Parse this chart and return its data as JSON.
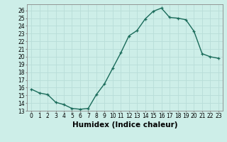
{
  "x": [
    0,
    1,
    2,
    3,
    4,
    5,
    6,
    7,
    8,
    9,
    10,
    11,
    12,
    13,
    14,
    15,
    16,
    17,
    18,
    19,
    20,
    21,
    22,
    23
  ],
  "y": [
    15.8,
    15.3,
    15.1,
    14.1,
    13.8,
    13.3,
    13.2,
    13.3,
    15.1,
    16.5,
    18.5,
    20.5,
    22.7,
    23.4,
    24.9,
    25.9,
    26.3,
    25.1,
    25.0,
    24.8,
    23.3,
    20.4,
    20.0,
    19.8
  ],
  "line_color": "#1a6b5a",
  "marker": "+",
  "marker_color": "#1a6b5a",
  "bg_color": "#cdeee8",
  "grid_color": "#b8ddd8",
  "xlabel": "Humidex (Indice chaleur)",
  "xlim": [
    -0.5,
    23.5
  ],
  "ylim": [
    13,
    26.8
  ],
  "yticks": [
    13,
    14,
    15,
    16,
    17,
    18,
    19,
    20,
    21,
    22,
    23,
    24,
    25,
    26
  ],
  "xticks": [
    0,
    1,
    2,
    3,
    4,
    5,
    6,
    7,
    8,
    9,
    10,
    11,
    12,
    13,
    14,
    15,
    16,
    17,
    18,
    19,
    20,
    21,
    22,
    23
  ],
  "xtick_labels": [
    "0",
    "1",
    "2",
    "3",
    "4",
    "5",
    "6",
    "7",
    "8",
    "9",
    "10",
    "11",
    "12",
    "13",
    "14",
    "15",
    "16",
    "17",
    "18",
    "19",
    "20",
    "21",
    "22",
    "23"
  ],
  "tick_fontsize": 5.5,
  "xlabel_fontsize": 7.5,
  "line_width": 1.0,
  "marker_size": 3.5
}
